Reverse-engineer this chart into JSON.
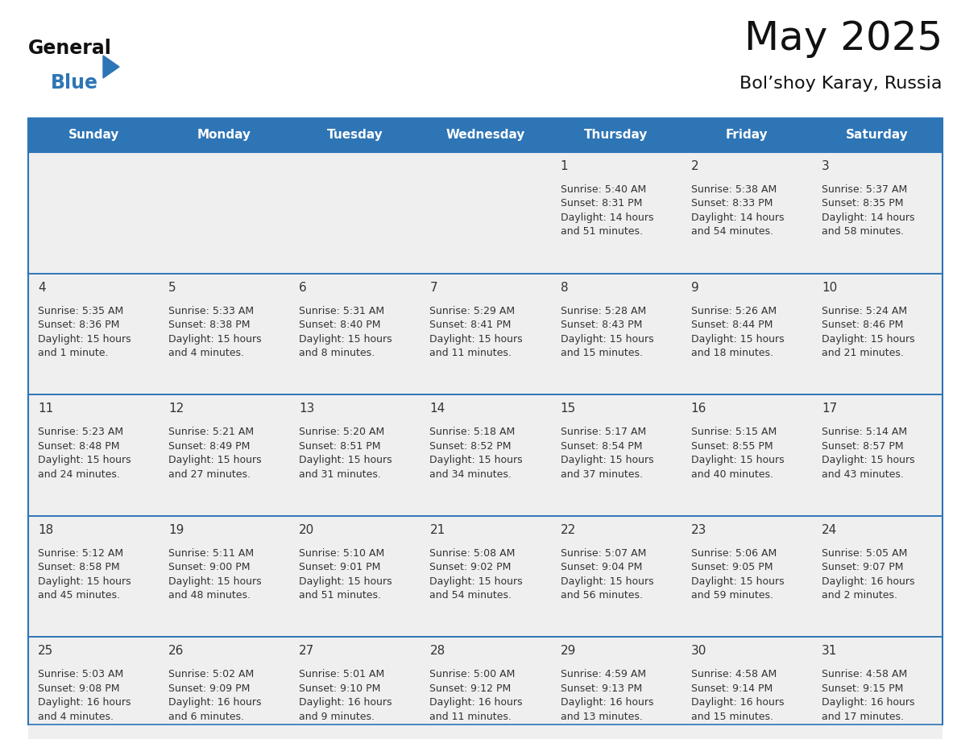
{
  "title": "May 2025",
  "subtitle": "Bol’shoy Karay, Russia",
  "days_of_week": [
    "Sunday",
    "Monday",
    "Tuesday",
    "Wednesday",
    "Thursday",
    "Friday",
    "Saturday"
  ],
  "header_bg": "#2E75B6",
  "header_text_color": "#FFFFFF",
  "cell_bg_light": "#EFEFEF",
  "cell_bg_white": "#FFFFFF",
  "border_color": "#2E75B6",
  "row_sep_color": "#2E75B6",
  "text_color": "#333333",
  "calendar_data": [
    [
      null,
      null,
      null,
      null,
      {
        "day": 1,
        "sunrise": "5:40 AM",
        "sunset": "8:31 PM",
        "daylight_a": "14 hours",
        "daylight_b": "and 51 minutes."
      },
      {
        "day": 2,
        "sunrise": "5:38 AM",
        "sunset": "8:33 PM",
        "daylight_a": "14 hours",
        "daylight_b": "and 54 minutes."
      },
      {
        "day": 3,
        "sunrise": "5:37 AM",
        "sunset": "8:35 PM",
        "daylight_a": "14 hours",
        "daylight_b": "and 58 minutes."
      }
    ],
    [
      {
        "day": 4,
        "sunrise": "5:35 AM",
        "sunset": "8:36 PM",
        "daylight_a": "15 hours",
        "daylight_b": "and 1 minute."
      },
      {
        "day": 5,
        "sunrise": "5:33 AM",
        "sunset": "8:38 PM",
        "daylight_a": "15 hours",
        "daylight_b": "and 4 minutes."
      },
      {
        "day": 6,
        "sunrise": "5:31 AM",
        "sunset": "8:40 PM",
        "daylight_a": "15 hours",
        "daylight_b": "and 8 minutes."
      },
      {
        "day": 7,
        "sunrise": "5:29 AM",
        "sunset": "8:41 PM",
        "daylight_a": "15 hours",
        "daylight_b": "and 11 minutes."
      },
      {
        "day": 8,
        "sunrise": "5:28 AM",
        "sunset": "8:43 PM",
        "daylight_a": "15 hours",
        "daylight_b": "and 15 minutes."
      },
      {
        "day": 9,
        "sunrise": "5:26 AM",
        "sunset": "8:44 PM",
        "daylight_a": "15 hours",
        "daylight_b": "and 18 minutes."
      },
      {
        "day": 10,
        "sunrise": "5:24 AM",
        "sunset": "8:46 PM",
        "daylight_a": "15 hours",
        "daylight_b": "and 21 minutes."
      }
    ],
    [
      {
        "day": 11,
        "sunrise": "5:23 AM",
        "sunset": "8:48 PM",
        "daylight_a": "15 hours",
        "daylight_b": "and 24 minutes."
      },
      {
        "day": 12,
        "sunrise": "5:21 AM",
        "sunset": "8:49 PM",
        "daylight_a": "15 hours",
        "daylight_b": "and 27 minutes."
      },
      {
        "day": 13,
        "sunrise": "5:20 AM",
        "sunset": "8:51 PM",
        "daylight_a": "15 hours",
        "daylight_b": "and 31 minutes."
      },
      {
        "day": 14,
        "sunrise": "5:18 AM",
        "sunset": "8:52 PM",
        "daylight_a": "15 hours",
        "daylight_b": "and 34 minutes."
      },
      {
        "day": 15,
        "sunrise": "5:17 AM",
        "sunset": "8:54 PM",
        "daylight_a": "15 hours",
        "daylight_b": "and 37 minutes."
      },
      {
        "day": 16,
        "sunrise": "5:15 AM",
        "sunset": "8:55 PM",
        "daylight_a": "15 hours",
        "daylight_b": "and 40 minutes."
      },
      {
        "day": 17,
        "sunrise": "5:14 AM",
        "sunset": "8:57 PM",
        "daylight_a": "15 hours",
        "daylight_b": "and 43 minutes."
      }
    ],
    [
      {
        "day": 18,
        "sunrise": "5:12 AM",
        "sunset": "8:58 PM",
        "daylight_a": "15 hours",
        "daylight_b": "and 45 minutes."
      },
      {
        "day": 19,
        "sunrise": "5:11 AM",
        "sunset": "9:00 PM",
        "daylight_a": "15 hours",
        "daylight_b": "and 48 minutes."
      },
      {
        "day": 20,
        "sunrise": "5:10 AM",
        "sunset": "9:01 PM",
        "daylight_a": "15 hours",
        "daylight_b": "and 51 minutes."
      },
      {
        "day": 21,
        "sunrise": "5:08 AM",
        "sunset": "9:02 PM",
        "daylight_a": "15 hours",
        "daylight_b": "and 54 minutes."
      },
      {
        "day": 22,
        "sunrise": "5:07 AM",
        "sunset": "9:04 PM",
        "daylight_a": "15 hours",
        "daylight_b": "and 56 minutes."
      },
      {
        "day": 23,
        "sunrise": "5:06 AM",
        "sunset": "9:05 PM",
        "daylight_a": "15 hours",
        "daylight_b": "and 59 minutes."
      },
      {
        "day": 24,
        "sunrise": "5:05 AM",
        "sunset": "9:07 PM",
        "daylight_a": "16 hours",
        "daylight_b": "and 2 minutes."
      }
    ],
    [
      {
        "day": 25,
        "sunrise": "5:03 AM",
        "sunset": "9:08 PM",
        "daylight_a": "16 hours",
        "daylight_b": "and 4 minutes."
      },
      {
        "day": 26,
        "sunrise": "5:02 AM",
        "sunset": "9:09 PM",
        "daylight_a": "16 hours",
        "daylight_b": "and 6 minutes."
      },
      {
        "day": 27,
        "sunrise": "5:01 AM",
        "sunset": "9:10 PM",
        "daylight_a": "16 hours",
        "daylight_b": "and 9 minutes."
      },
      {
        "day": 28,
        "sunrise": "5:00 AM",
        "sunset": "9:12 PM",
        "daylight_a": "16 hours",
        "daylight_b": "and 11 minutes."
      },
      {
        "day": 29,
        "sunrise": "4:59 AM",
        "sunset": "9:13 PM",
        "daylight_a": "16 hours",
        "daylight_b": "and 13 minutes."
      },
      {
        "day": 30,
        "sunrise": "4:58 AM",
        "sunset": "9:14 PM",
        "daylight_a": "16 hours",
        "daylight_b": "and 15 minutes."
      },
      {
        "day": 31,
        "sunrise": "4:58 AM",
        "sunset": "9:15 PM",
        "daylight_a": "16 hours",
        "daylight_b": "and 17 minutes."
      }
    ]
  ],
  "logo_text_general": "General",
  "logo_text_blue": "Blue",
  "title_fontsize": 36,
  "subtitle_fontsize": 16,
  "dow_fontsize": 11,
  "day_num_fontsize": 11,
  "info_fontsize": 9
}
